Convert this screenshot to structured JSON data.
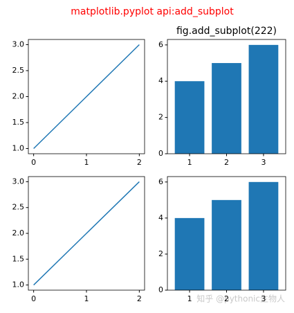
{
  "title": "matplotlib.pyplot api:add_subplot",
  "watermark": "知乎 @pythonic生物人",
  "chart_data": [
    {
      "type": "line",
      "x": [
        0,
        1,
        2
      ],
      "series": [
        {
          "color": "#1f77b4",
          "values": [
            1,
            2,
            3
          ]
        }
      ],
      "xlim": [
        -0.1,
        2.1
      ],
      "ylim": [
        0.9,
        3.1
      ],
      "xticks": [
        0,
        1,
        2
      ],
      "yticks": [
        {
          "value": 1,
          "label": "1.0"
        },
        1.5,
        {
          "value": 2,
          "label": "2.0"
        },
        2.5,
        {
          "value": 3,
          "label": "3.0"
        }
      ]
    },
    {
      "type": "bar",
      "title": "fig.add_subplot(222)",
      "x": [
        1,
        2,
        3
      ],
      "series": [
        {
          "color": "#1f77b4",
          "values": [
            4,
            5,
            6
          ]
        }
      ],
      "xlim": [
        0.4,
        3.6
      ],
      "ylim": [
        0,
        6.3
      ],
      "xticks": [
        1,
        2,
        3
      ],
      "yticks": [
        0,
        2,
        4,
        6
      ]
    },
    {
      "type": "line",
      "x": [
        0,
        1,
        2
      ],
      "series": [
        {
          "color": "#1f77b4",
          "values": [
            1,
            2,
            3
          ]
        }
      ],
      "xlim": [
        -0.1,
        2.1
      ],
      "ylim": [
        0.9,
        3.1
      ],
      "xticks": [
        0,
        1,
        2
      ],
      "yticks": [
        {
          "value": 1,
          "label": "1.0"
        },
        1.5,
        {
          "value": 2,
          "label": "2.0"
        },
        2.5,
        {
          "value": 3,
          "label": "3.0"
        }
      ]
    },
    {
      "type": "bar",
      "x": [
        1,
        2,
        3
      ],
      "series": [
        {
          "color": "#1f77b4",
          "values": [
            4,
            5,
            6
          ]
        }
      ],
      "xlim": [
        0.4,
        3.6
      ],
      "ylim": [
        0,
        6.3
      ],
      "xticks": [
        1,
        2,
        3
      ],
      "yticks": [
        0,
        2,
        4,
        6
      ]
    }
  ]
}
